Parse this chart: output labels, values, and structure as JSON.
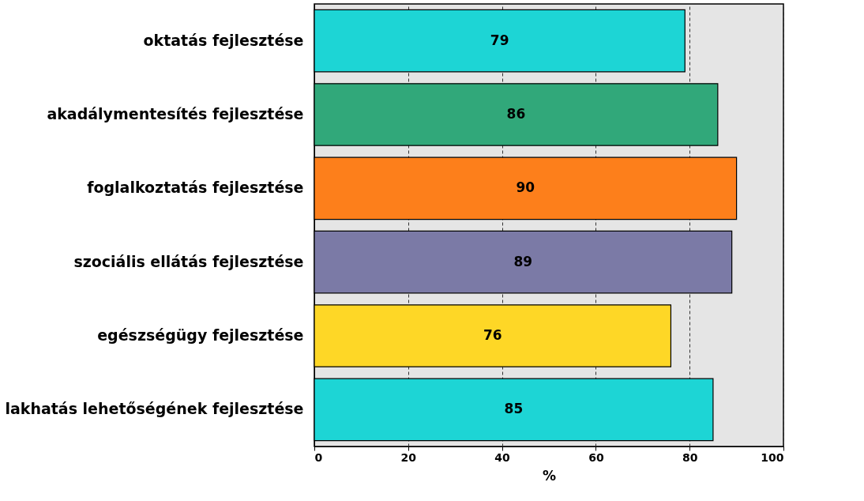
{
  "chart_data": {
    "type": "bar",
    "orientation": "horizontal",
    "xlabel": "%",
    "categories": [
      "oktatás fejlesztése",
      "akadálymentesítés fejlesztése",
      "foglalkoztatás fejlesztése",
      "szociális ellátás fejlesztése",
      "egészségügy fejlesztése",
      "lakhatás lehetőségének fejlesztése"
    ],
    "values": [
      79,
      86,
      90,
      89,
      76,
      85
    ],
    "colors": [
      "#1dd5d5",
      "#31a87a",
      "#fd7f1b",
      "#7b7aa6",
      "#fed726",
      "#1dd5d5"
    ],
    "xlim": [
      0,
      100
    ],
    "xticks": [
      0,
      20,
      40,
      60,
      80,
      100
    ],
    "grid": "x",
    "data_labels": true
  }
}
